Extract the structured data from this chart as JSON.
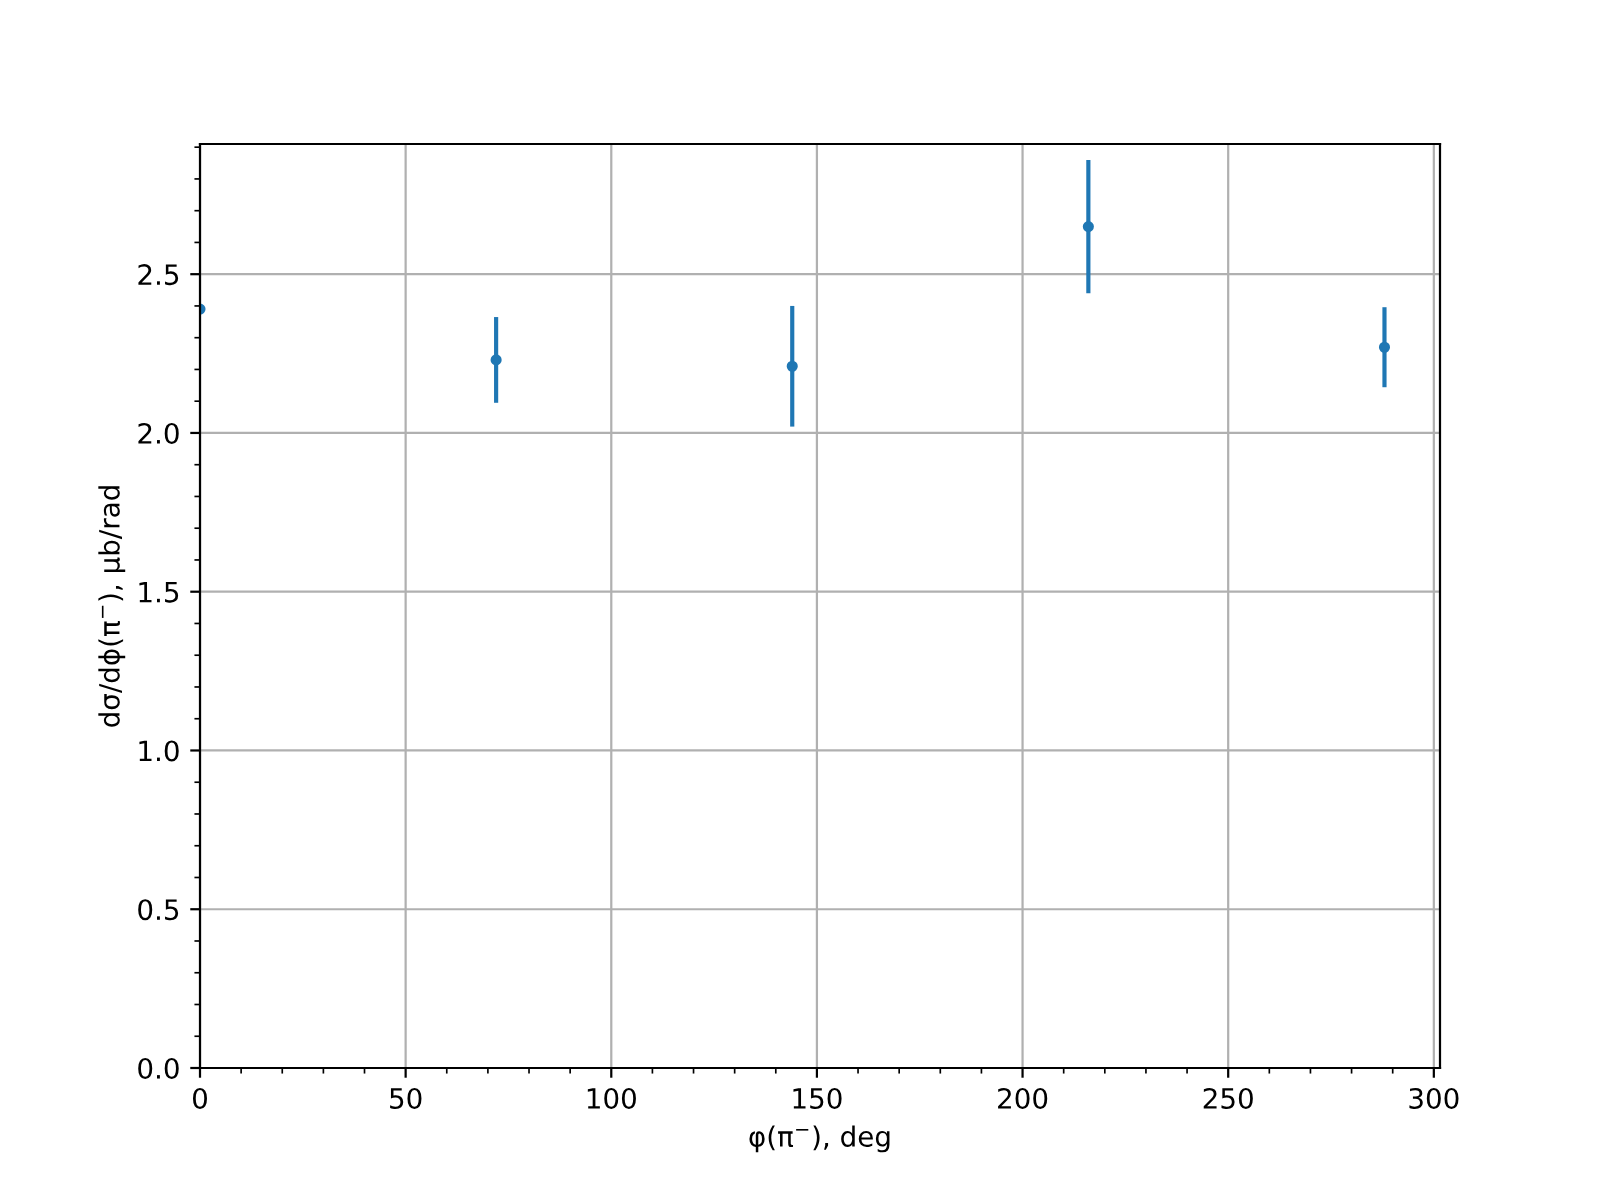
{
  "chart_data": {
    "type": "scatter",
    "xlabel": "φ(π$^{−}$), deg",
    "ylabel": "dσ/dϕ(π$^{−}$), μb/rad",
    "x": [
      0,
      72,
      144,
      216,
      288
    ],
    "series": [
      {
        "color": "#1f77b4",
        "values": [
          2.39,
          2.23,
          2.21,
          2.65,
          2.27
        ],
        "errors": [
          null,
          0.135,
          0.19,
          0.21,
          0.126
        ]
      }
    ],
    "xlim": [
      0,
      301.5
    ],
    "xticks": [
      0,
      50,
      100,
      150,
      200,
      250,
      300
    ],
    "ylim": [
      0,
      2.91
    ],
    "yticks": [
      {
        "value": 0,
        "label": "0.0"
      },
      {
        "value": 0.5,
        "label": "0.5"
      },
      {
        "value": 1,
        "label": "1.0"
      },
      {
        "value": 1.5,
        "label": "1.5"
      },
      {
        "value": 2,
        "label": "2.0"
      },
      {
        "value": 2.5,
        "label": "2.5"
      }
    ],
    "grid": true,
    "marker": "circle"
  }
}
